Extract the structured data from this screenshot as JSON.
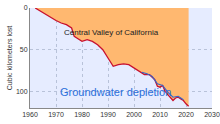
{
  "chart_data": {
    "type": "line",
    "title": "Groundwater depletion",
    "y_label": "Cubic kilometers lost",
    "annotations": [
      "Central Valley of California"
    ],
    "grid": true,
    "xlim": [
      1960,
      2030
    ],
    "xticks": [
      1960,
      1970,
      1980,
      1990,
      2000,
      2010,
      2020,
      2030
    ],
    "ylim": [
      120,
      0
    ],
    "yticks": [
      0,
      50,
      100
    ],
    "series": [
      {
        "name": "Central Valley of California",
        "color": "#c8102e",
        "x": [
          1962,
          1964,
          1966,
          1968,
          1970,
          1972,
          1974,
          1976,
          1977,
          1978,
          1980,
          1982,
          1984,
          1986,
          1988,
          1990,
          1992,
          1994,
          1996,
          1998,
          2000,
          2002,
          2004,
          2006,
          2008,
          2009,
          2010,
          2011,
          2012,
          2013,
          2014,
          2015,
          2016,
          2017,
          2018,
          2019,
          2020,
          2021
        ],
        "values": [
          0,
          4,
          8,
          11,
          15,
          18,
          20,
          24,
          34,
          36,
          40,
          38,
          40,
          44,
          50,
          60,
          70,
          68,
          67,
          68,
          72,
          76,
          80,
          80,
          86,
          94,
          95,
          93,
          100,
          104,
          108,
          111,
          108,
          107,
          109,
          111,
          115,
          118
        ]
      },
      {
        "name": "Groundwater depletion",
        "color": "#3366cc",
        "x": [
          2003,
          2005,
          2007,
          2009,
          2011,
          2013,
          2015,
          2017,
          2019
        ],
        "values": [
          77,
          79,
          82,
          91,
          93,
          101,
          107,
          106,
          110
        ]
      }
    ]
  }
}
